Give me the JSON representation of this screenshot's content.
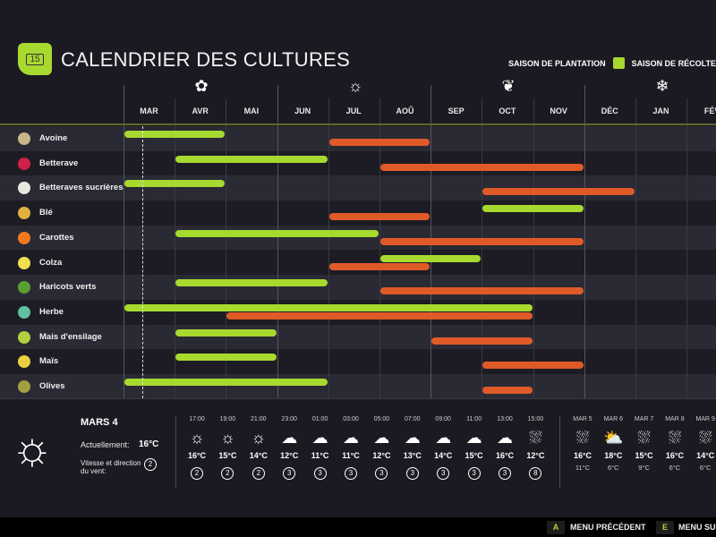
{
  "header": {
    "title": "CALENDRIER DES CULTURES",
    "logo_day": "15",
    "legend_planting": "SAISON DE PLANTATION",
    "legend_harvest": "SAISON DE RÉCOLTE"
  },
  "colors": {
    "planting": "#a7d92f",
    "harvest": "#e05a28"
  },
  "months": [
    "MAR",
    "AVR",
    "MAI",
    "JUN",
    "JUL",
    "AOÛ",
    "SEP",
    "OCT",
    "NOV",
    "DÉC",
    "JAN",
    "FÉV"
  ],
  "seasons": [
    {
      "icon": "flower-icon",
      "glyph": "✿"
    },
    {
      "icon": "sun-icon",
      "glyph": "☼"
    },
    {
      "icon": "leaves-icon",
      "glyph": "❦"
    },
    {
      "icon": "snowflake-icon",
      "glyph": "❄"
    }
  ],
  "crops": [
    {
      "name": "Avoine",
      "color": "#c9b58a",
      "plant": [
        [
          0,
          2
        ]
      ],
      "harvest": [
        [
          4,
          6
        ]
      ]
    },
    {
      "name": "Betterave",
      "color": "#d0204a",
      "plant": [
        [
          1,
          4
        ]
      ],
      "harvest": [
        [
          5,
          9
        ]
      ]
    },
    {
      "name": "Betteraves sucrières",
      "color": "#e8e8e0",
      "plant": [
        [
          0,
          2
        ]
      ],
      "harvest": [
        [
          7,
          10
        ]
      ]
    },
    {
      "name": "Blé",
      "color": "#e0b040",
      "plant": [
        [
          7,
          9
        ]
      ],
      "harvest": [
        [
          4,
          6
        ]
      ]
    },
    {
      "name": "Carottes",
      "color": "#f07a20",
      "plant": [
        [
          1,
          5
        ]
      ],
      "harvest": [
        [
          5,
          9
        ]
      ]
    },
    {
      "name": "Colza",
      "color": "#f0e050",
      "plant": [
        [
          5,
          7
        ]
      ],
      "harvest": [
        [
          4,
          6
        ]
      ]
    },
    {
      "name": "Haricots verts",
      "color": "#5aa030",
      "plant": [
        [
          1,
          4
        ]
      ],
      "harvest": [
        [
          5,
          9
        ]
      ]
    },
    {
      "name": "Herbe",
      "color": "#60c0a0",
      "plant": [
        [
          0,
          8
        ]
      ],
      "harvest": [
        [
          2,
          8
        ]
      ]
    },
    {
      "name": "Mais d'ensilage",
      "color": "#b0d040",
      "plant": [
        [
          1,
          3
        ]
      ],
      "harvest": [
        [
          6,
          8
        ]
      ]
    },
    {
      "name": "Maïs",
      "color": "#e8d040",
      "plant": [
        [
          1,
          3
        ]
      ],
      "harvest": [
        [
          7,
          9
        ]
      ]
    },
    {
      "name": "Olives",
      "color": "#a0a040",
      "plant": [
        [
          0,
          4
        ]
      ],
      "harvest": [
        [
          7,
          8
        ]
      ]
    }
  ],
  "weather": {
    "date": "MARS 4",
    "current_label": "Actuellement:",
    "current_temp": "16°C",
    "wind_label": "Vitesse et direction du vent:",
    "wind": "2",
    "hourly": [
      {
        "time": "17:00",
        "icon": "sun",
        "temp": "16°C",
        "wind": "2"
      },
      {
        "time": "19:00",
        "icon": "sun",
        "temp": "15°C",
        "wind": "2"
      },
      {
        "time": "21:00",
        "icon": "sun",
        "temp": "14°C",
        "wind": "2"
      },
      {
        "time": "23:00",
        "icon": "cloud",
        "temp": "12°C",
        "wind": "3"
      },
      {
        "time": "01:00",
        "icon": "cloud",
        "temp": "11°C",
        "wind": "3"
      },
      {
        "time": "03:00",
        "icon": "cloud",
        "temp": "11°C",
        "wind": "3"
      },
      {
        "time": "05:00",
        "icon": "cloud",
        "temp": "12°C",
        "wind": "3"
      },
      {
        "time": "07:00",
        "icon": "cloud",
        "temp": "13°C",
        "wind": "3"
      },
      {
        "time": "09:00",
        "icon": "cloud",
        "temp": "14°C",
        "wind": "3"
      },
      {
        "time": "11:00",
        "icon": "cloud",
        "temp": "15°C",
        "wind": "3"
      },
      {
        "time": "13:00",
        "icon": "cloud",
        "temp": "16°C",
        "wind": "3"
      },
      {
        "time": "15:00",
        "icon": "hail",
        "temp": "12°C",
        "wind": "8"
      }
    ],
    "daily": [
      {
        "day": "MAR 5",
        "icon": "hail",
        "high": "16°C",
        "low": "11°C"
      },
      {
        "day": "MAR 6",
        "icon": "partly-sunny",
        "high": "18°C",
        "low": "6°C"
      },
      {
        "day": "MAR 7",
        "icon": "hail",
        "high": "15°C",
        "low": "9°C"
      },
      {
        "day": "MAR 8",
        "icon": "hail",
        "high": "16°C",
        "low": "6°C"
      },
      {
        "day": "MAR 9",
        "icon": "hail",
        "high": "14°C",
        "low": "6°C"
      }
    ]
  },
  "footer": {
    "prev_key": "A",
    "prev_label": "MENU PRÉCÉDENT",
    "next_key": "E",
    "next_label": "MENU SUIVANT"
  }
}
